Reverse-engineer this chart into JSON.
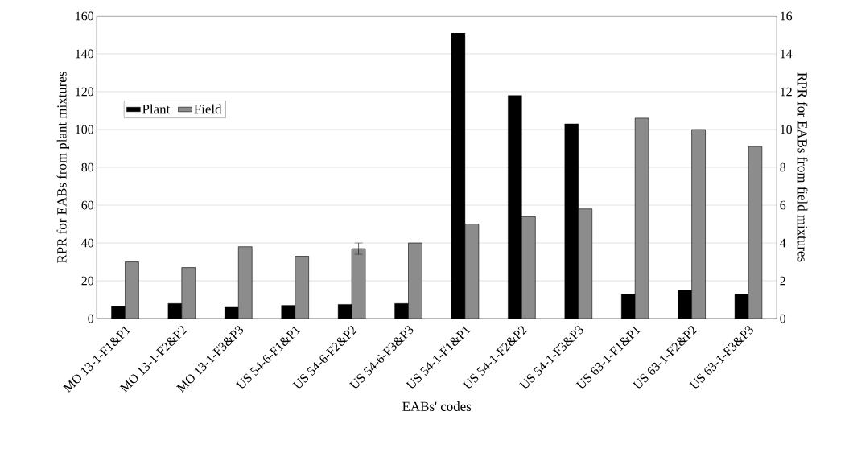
{
  "chart_data": {
    "type": "bar",
    "xlabel": "EABs' codes",
    "ylabel": "RPR for EABs from plant mixtures",
    "y2label": "RPR for EABs from field mixtures",
    "categories": [
      "MO 13-1-F1&P1",
      "MO 13-1-F2&P2",
      "MO 13-1-F3&P3",
      "US 54-6-F1&P1",
      "US 54-6-F2&P2",
      "US 54-6-F3&P3",
      "US 54-1-F1&P1",
      "US 54-1-F2&P2",
      "US 54-1-F3&P3",
      "US 63-1-F1&P1",
      "US 63-1-F2&P2",
      "US 63-1-F3&P3"
    ],
    "series": [
      {
        "name": "Plant",
        "color": "#000000",
        "values": [
          6.5,
          8,
          6,
          7,
          7.5,
          8,
          151,
          118,
          103,
          13,
          15,
          13
        ]
      },
      {
        "name": "Field",
        "color": "#8c8c8c",
        "axis": "y2",
        "values": [
          3.0,
          2.7,
          3.8,
          3.3,
          3.7,
          4.0,
          5.0,
          5.4,
          5.8,
          10.6,
          10.0,
          9.1
        ],
        "errors": [
          null,
          null,
          null,
          null,
          0.3,
          null,
          null,
          null,
          null,
          null,
          null,
          null
        ]
      }
    ],
    "ylim": [
      0,
      160
    ],
    "yticks": [
      0,
      20,
      40,
      60,
      80,
      100,
      120,
      140,
      160
    ],
    "y2lim": [
      0,
      16
    ],
    "y2ticks": [
      0,
      2,
      4,
      6,
      8,
      10,
      12,
      14,
      16
    ],
    "grid": "y",
    "legend": "top left"
  }
}
